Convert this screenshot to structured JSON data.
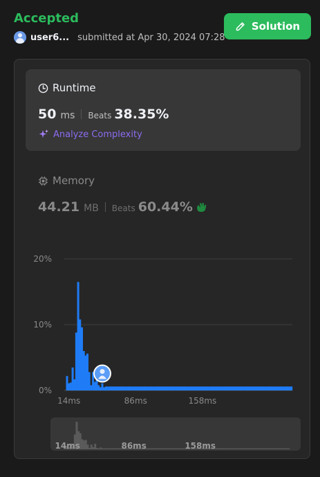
{
  "header": {
    "status": "Accepted",
    "username": "user6...",
    "submitted_text": "submitted at Apr 30, 2024 07:28",
    "solution_label": "Solution"
  },
  "runtime": {
    "label": "Runtime",
    "value": "50",
    "unit": "ms",
    "beats_label": "Beats",
    "beats_value": "38.35%",
    "analyze_label": "Analyze Complexity"
  },
  "memory": {
    "label": "Memory",
    "value": "44.21",
    "unit": "MB",
    "beats_label": "Beats",
    "beats_value": "60.44%"
  },
  "colors": {
    "accent_green": "#2cbb5d",
    "bar_blue": "#1f7cf6",
    "minimap_bar": "#5a5a5a",
    "analyze_purple": "#8c6cf0"
  },
  "chart_data": {
    "type": "bar",
    "x_tick_labels": [
      "14ms",
      "86ms",
      "158ms"
    ],
    "x_ticks": [
      14,
      86,
      158
    ],
    "xlim": [
      9,
      255
    ],
    "y_tick_labels": [
      "0%",
      "10%",
      "20%"
    ],
    "y_ticks": [
      0,
      10,
      20
    ],
    "ylim": [
      0,
      20
    ],
    "grid": true,
    "highlight_x": 50,
    "x": [
      12,
      14,
      16,
      18,
      20,
      22,
      24,
      26,
      28,
      30,
      32,
      34,
      36,
      38,
      40,
      42,
      44,
      46,
      48,
      50,
      52,
      54,
      56,
      58,
      60,
      62,
      64,
      66,
      68,
      70,
      72,
      74,
      76,
      78,
      80,
      82,
      84,
      86,
      88,
      90,
      92,
      94,
      96,
      98,
      100,
      102,
      104,
      106,
      108,
      110,
      112,
      114,
      116,
      118,
      120,
      122,
      124,
      126,
      128,
      130,
      132,
      134,
      136,
      138,
      140,
      142,
      144,
      146,
      148,
      150,
      152,
      154,
      156,
      158,
      160,
      162,
      164,
      166,
      168,
      170,
      172,
      174,
      176,
      178,
      180,
      182,
      184,
      186,
      188,
      190,
      192,
      194,
      196,
      198,
      200,
      202,
      204,
      206,
      208,
      210,
      212,
      214,
      216,
      218,
      220,
      222,
      224,
      226,
      228,
      230,
      232,
      234,
      236,
      238,
      240,
      242,
      244,
      246,
      248,
      250,
      252,
      254
    ],
    "values": [
      2.2,
      1.1,
      1.2,
      3.5,
      1.7,
      8.8,
      16.5,
      10.8,
      9.6,
      6.0,
      5.3,
      5.6,
      2.8,
      0.8,
      2.8,
      1.3,
      3.3,
      0.8,
      0.5,
      1.1,
      0.5,
      0.6,
      0.6,
      0.6,
      0.6,
      0.6,
      0.6,
      0.6,
      0.6,
      0.6,
      0.6,
      0.6,
      0.6,
      0.6,
      0.6,
      0.6,
      0.6,
      0.6,
      0.6,
      0.6,
      0.6,
      0.6,
      0.6,
      0.6,
      0.6,
      0.6,
      0.6,
      0.6,
      0.6,
      0.6,
      0.6,
      0.6,
      0.6,
      0.6,
      0.6,
      0.6,
      0.6,
      0.6,
      0.6,
      0.6,
      0.6,
      0.6,
      0.6,
      0.6,
      0.6,
      0.6,
      0.6,
      0.6,
      0.6,
      0.6,
      0.6,
      0.6,
      0.6,
      0.6,
      0.6,
      0.6,
      0.6,
      0.6,
      0.6,
      0.6,
      0.6,
      0.6,
      0.6,
      0.6,
      0.6,
      0.6,
      0.6,
      0.6,
      0.6,
      0.6,
      0.6,
      0.6,
      0.6,
      0.6,
      0.6,
      0.6,
      0.6,
      0.6,
      0.6,
      0.6,
      0.6,
      0.6,
      0.6,
      0.6,
      0.6,
      0.6,
      0.6,
      0.6,
      0.6,
      0.6,
      0.6,
      0.6,
      0.6,
      0.6,
      0.6,
      0.6,
      0.6,
      0.6,
      0.6,
      0.6,
      0.6,
      0.6
    ]
  }
}
